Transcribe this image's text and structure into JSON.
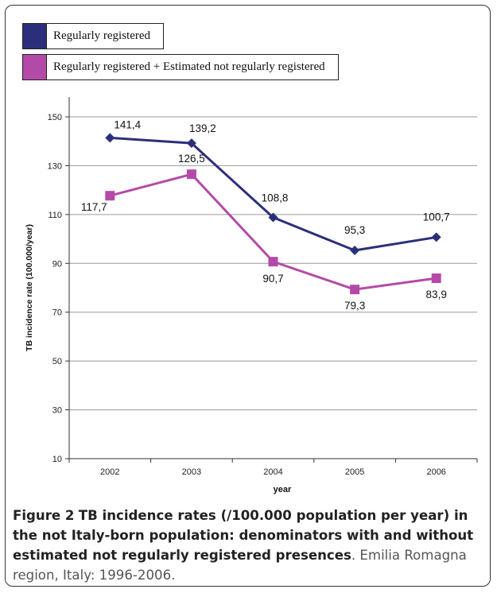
{
  "chart_data": {
    "type": "line",
    "xlabel": "year",
    "ylabel": "TB incidence rate (100.000/year)",
    "categories": [
      "2002",
      "2003",
      "2004",
      "2005",
      "2006"
    ],
    "ylim": [
      10,
      150
    ],
    "yticks": [
      10,
      30,
      50,
      70,
      90,
      110,
      130,
      150
    ],
    "grid": "horizontal",
    "legend_position": "top-left",
    "series": [
      {
        "name": "Regularly registered",
        "values": [
          141.4,
          139.2,
          108.8,
          95.3,
          100.7
        ],
        "labels": [
          "141,4",
          "139,2",
          "108,8",
          "95,3",
          "100,7"
        ],
        "color": "#2b2f7a",
        "marker": "diamond"
      },
      {
        "name": "Regularly registered + Estimated not regularly registered",
        "values": [
          117.7,
          126.5,
          90.7,
          79.3,
          83.9
        ],
        "labels": [
          "117,7",
          "126,5",
          "90,7",
          "79,3",
          "83,9"
        ],
        "color": "#b44aa8",
        "marker": "square"
      }
    ]
  },
  "caption": {
    "figure_label": "Figure 2",
    "title": "TB incidence rates (/100.000 population per year) in the not Italy-born population: denominators with and without estimated not regularly registered presences",
    "rest": ". Emilia Romagna region, Italy: 1996-2006."
  }
}
